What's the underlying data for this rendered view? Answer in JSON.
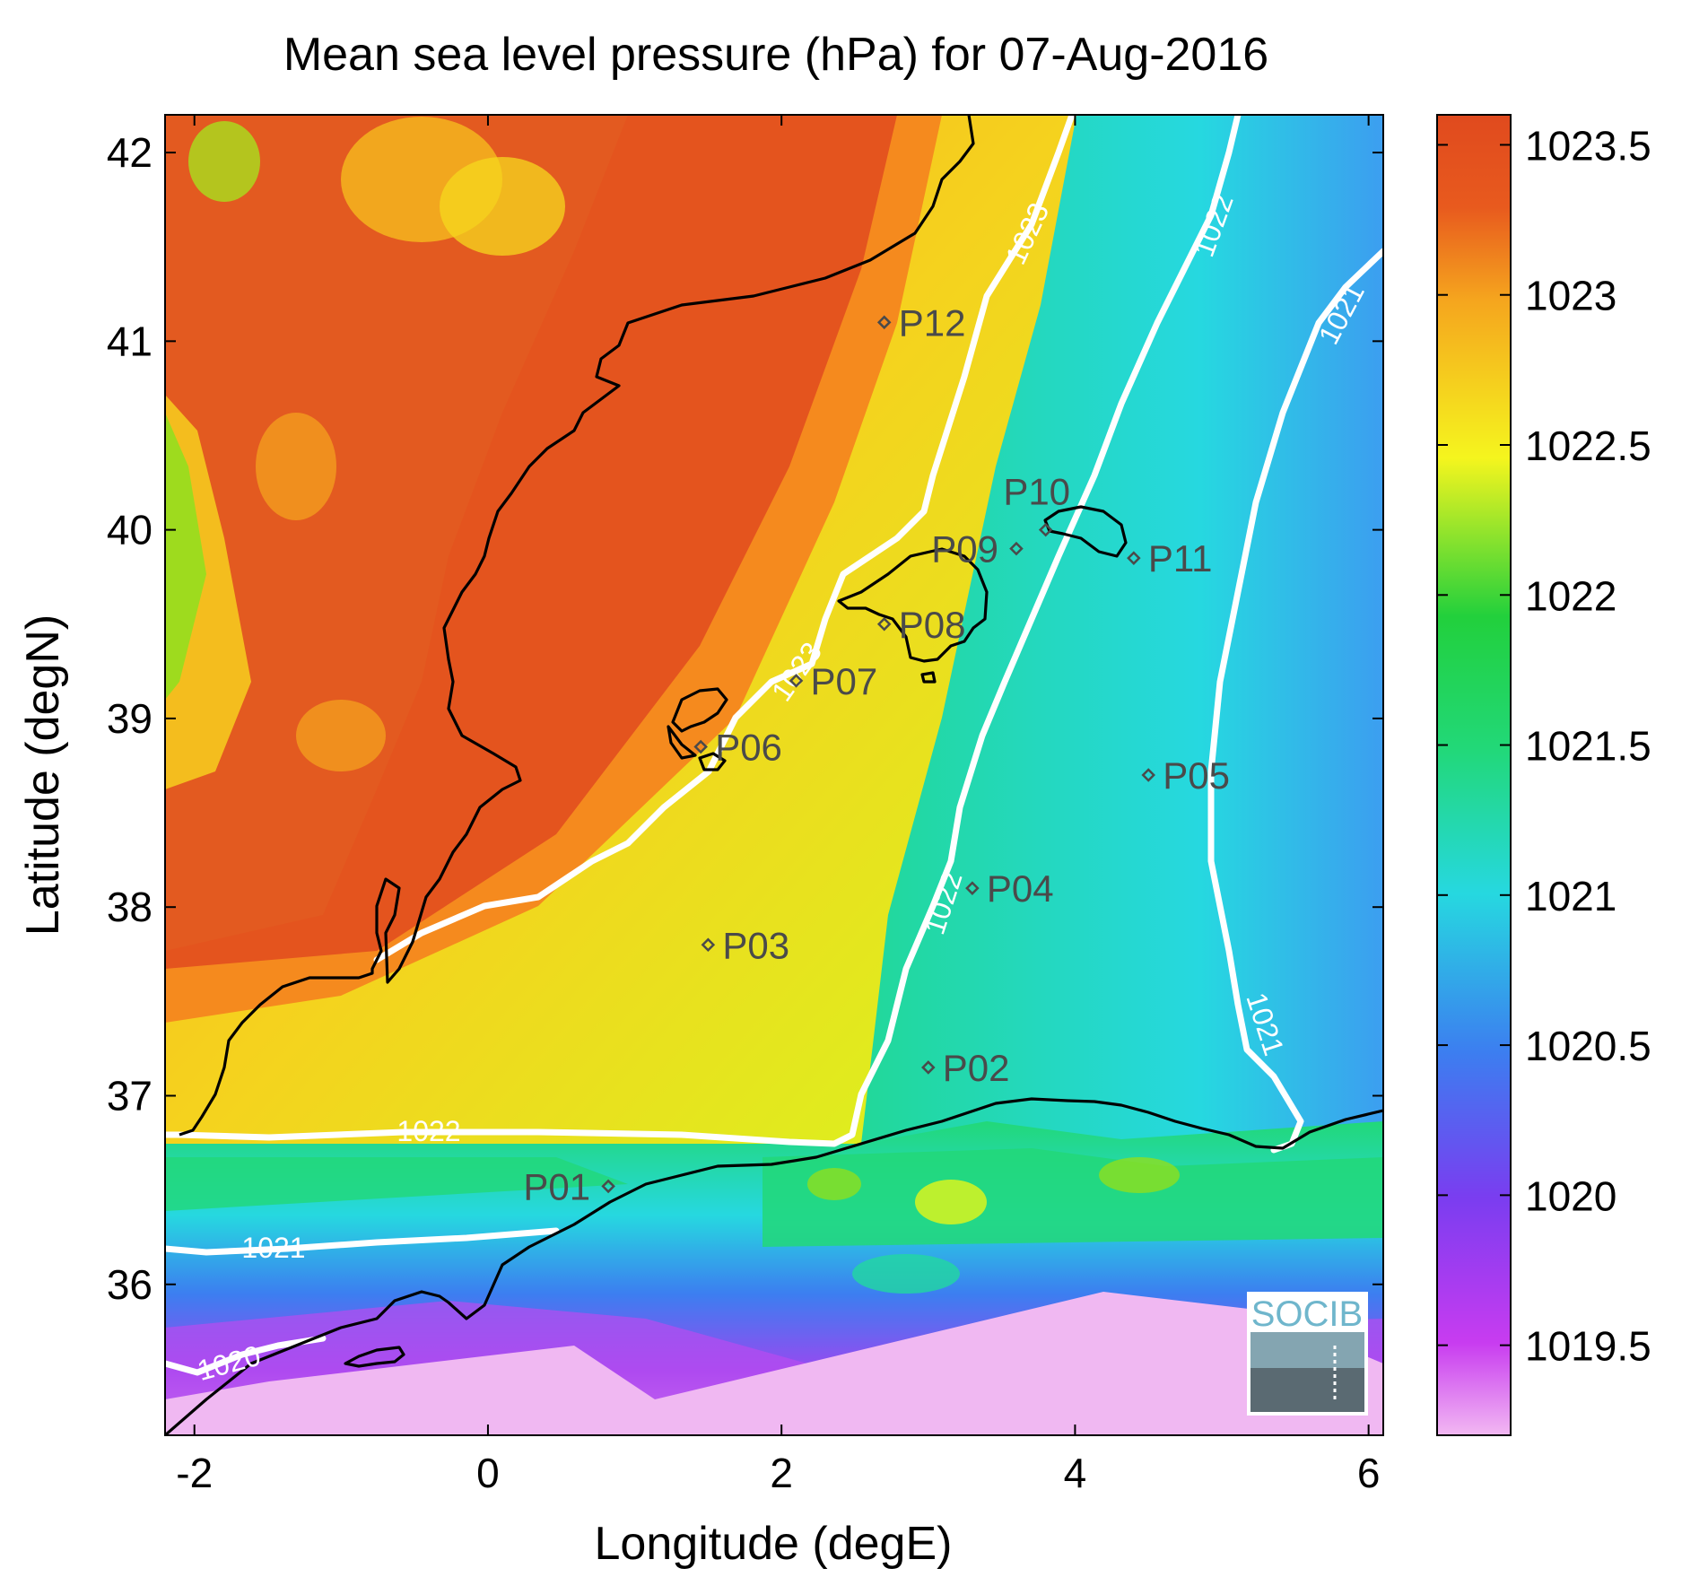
{
  "title": "Mean sea level pressure (hPa) for 07-Aug-2016",
  "xlabel": "Longitude (degE)",
  "ylabel": "Latitude (degN)",
  "x_ticks": [
    "-2",
    "0",
    "2",
    "4",
    "6"
  ],
  "y_ticks": [
    "36",
    "37",
    "38",
    "39",
    "40",
    "41",
    "42"
  ],
  "colorbar": {
    "ticks": [
      "1019.5",
      "1020",
      "1020.5",
      "1021",
      "1021.5",
      "1022",
      "1022.5",
      "1023",
      "1023.5"
    ],
    "min": 1019.2,
    "max": 1023.6,
    "colors": [
      "#f2b8f2",
      "#c83cf0",
      "#7a3df0",
      "#3c7ef0",
      "#26d8e0",
      "#22d03c",
      "#f5f51e",
      "#f5a51e",
      "#e85a1e",
      "#e04a1e"
    ]
  },
  "contour_labels": [
    "1023",
    "1022",
    "1021",
    "1020"
  ],
  "stations": [
    {
      "id": "P01",
      "lon": 0.82,
      "lat": 36.52
    },
    {
      "id": "P02",
      "lon": 3.0,
      "lat": 37.15
    },
    {
      "id": "P03",
      "lon": 1.5,
      "lat": 37.8
    },
    {
      "id": "P04",
      "lon": 3.3,
      "lat": 38.1
    },
    {
      "id": "P05",
      "lon": 4.5,
      "lat": 38.7
    },
    {
      "id": "P06",
      "lon": 1.45,
      "lat": 38.85
    },
    {
      "id": "P07",
      "lon": 2.1,
      "lat": 39.2
    },
    {
      "id": "P08",
      "lon": 2.7,
      "lat": 39.5
    },
    {
      "id": "P09",
      "lon": 3.6,
      "lat": 39.9
    },
    {
      "id": "P10",
      "lon": 3.8,
      "lat": 40.0
    },
    {
      "id": "P11",
      "lon": 4.4,
      "lat": 39.85
    },
    {
      "id": "P12",
      "lon": 2.7,
      "lat": 41.1
    }
  ],
  "logo": {
    "text": "SOCIB"
  }
}
